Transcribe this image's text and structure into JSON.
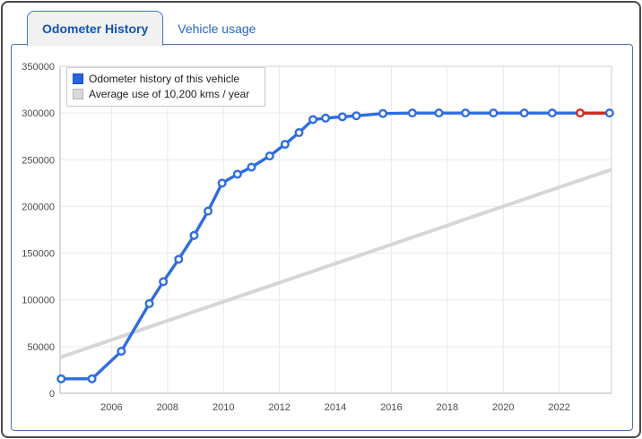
{
  "tabs": [
    {
      "label": "Odometer History",
      "active": true
    },
    {
      "label": "Vehicle usage",
      "active": false
    }
  ],
  "colors": {
    "accent_blue": "#2e6ce0",
    "highlight_red": "#cf2b1d",
    "average_gray": "#d6d6d6",
    "tab_active_text": "#1353ae",
    "tab_inactive_text": "#2565c5",
    "panel_border": "#4a70ad",
    "grid": "#e9e9e9"
  },
  "chart_data": {
    "type": "line",
    "title": "Odometer History",
    "xlabel": "",
    "ylabel": "",
    "x_range": [
      2004.16,
      2023.87
    ],
    "y_range": [
      0,
      350000
    ],
    "grid": true,
    "legend_position": "top-left",
    "x_ticks": [
      {
        "value": 2006,
        "label": "2006"
      },
      {
        "value": 2008,
        "label": "2008"
      },
      {
        "value": 2010,
        "label": "2010"
      },
      {
        "value": 2012,
        "label": "2012"
      },
      {
        "value": 2014,
        "label": "2014"
      },
      {
        "value": 2016,
        "label": "2016"
      },
      {
        "value": 2018,
        "label": "2018"
      },
      {
        "value": 2020,
        "label": "2020"
      },
      {
        "value": 2022,
        "label": "2022"
      }
    ],
    "y_ticks": [
      {
        "value": 0,
        "label": "0"
      },
      {
        "value": 50000,
        "label": "50000"
      },
      {
        "value": 100000,
        "label": "100000"
      },
      {
        "value": 150000,
        "label": "150000"
      },
      {
        "value": 200000,
        "label": "200000"
      },
      {
        "value": 250000,
        "label": "250000"
      },
      {
        "value": 300000,
        "label": "300000"
      },
      {
        "value": 350000,
        "label": "350000"
      }
    ],
    "series": [
      {
        "name": "Odometer history of this vehicle",
        "color": "#2e6ce0",
        "marker": "circle-open",
        "points": [
          [
            2004.2,
            15500
          ],
          [
            2005.3,
            15500
          ],
          [
            2006.35,
            45000
          ],
          [
            2007.35,
            96000
          ],
          [
            2007.85,
            119500
          ],
          [
            2008.4,
            143500
          ],
          [
            2008.95,
            169000
          ],
          [
            2009.45,
            195000
          ],
          [
            2009.95,
            225000
          ],
          [
            2010.5,
            234500
          ],
          [
            2011.0,
            242000
          ],
          [
            2011.65,
            254000
          ],
          [
            2012.2,
            266500
          ],
          [
            2012.7,
            279000
          ],
          [
            2013.2,
            293000
          ],
          [
            2013.65,
            294500
          ],
          [
            2014.25,
            296000
          ],
          [
            2014.75,
            297000
          ],
          [
            2015.7,
            299500
          ],
          [
            2016.75,
            300000
          ],
          [
            2017.7,
            300000
          ],
          [
            2018.65,
            300000
          ],
          [
            2019.65,
            300000
          ],
          [
            2020.75,
            300000
          ],
          [
            2021.75,
            300000
          ],
          [
            2022.75,
            300000
          ],
          [
            2023.8,
            300000
          ]
        ],
        "highlight": {
          "color": "#cf2b1d",
          "marker_index": 25,
          "segment": [
            25,
            26
          ]
        }
      },
      {
        "name": "Average use of 10,200 kms / year",
        "color": "#d6d6d6",
        "marker": "none",
        "points": [
          [
            2004.16,
            38500
          ],
          [
            2023.87,
            239500
          ]
        ]
      }
    ]
  }
}
